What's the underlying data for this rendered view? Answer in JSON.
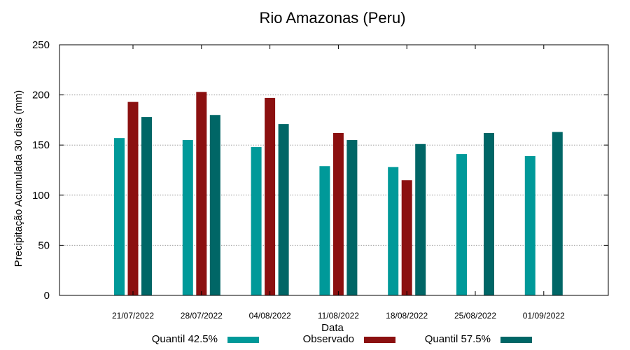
{
  "chart_data": {
    "type": "bar",
    "title": "Rio Amazonas (Peru)",
    "xlabel": "Data",
    "ylabel": "Precipitação Acumulada 30 dias (mm)",
    "ylim": [
      0,
      250
    ],
    "yticks": [
      0,
      50,
      100,
      150,
      200,
      250
    ],
    "grid": true,
    "legend_position": "bottom",
    "categories": [
      "21/07/2022",
      "28/07/2022",
      "04/08/2022",
      "11/08/2022",
      "18/08/2022",
      "25/08/2022",
      "01/09/2022"
    ],
    "series": [
      {
        "name": "Quantil 42.5%",
        "color": "#009999",
        "values": [
          157,
          155,
          148,
          129,
          128,
          141,
          139
        ]
      },
      {
        "name": "Observado",
        "color": "#8b1010",
        "values": [
          193,
          203,
          197,
          162,
          115,
          null,
          null
        ]
      },
      {
        "name": "Quantil 57.5%",
        "color": "#006666",
        "values": [
          178,
          180,
          171,
          155,
          151,
          162,
          163
        ]
      }
    ]
  }
}
